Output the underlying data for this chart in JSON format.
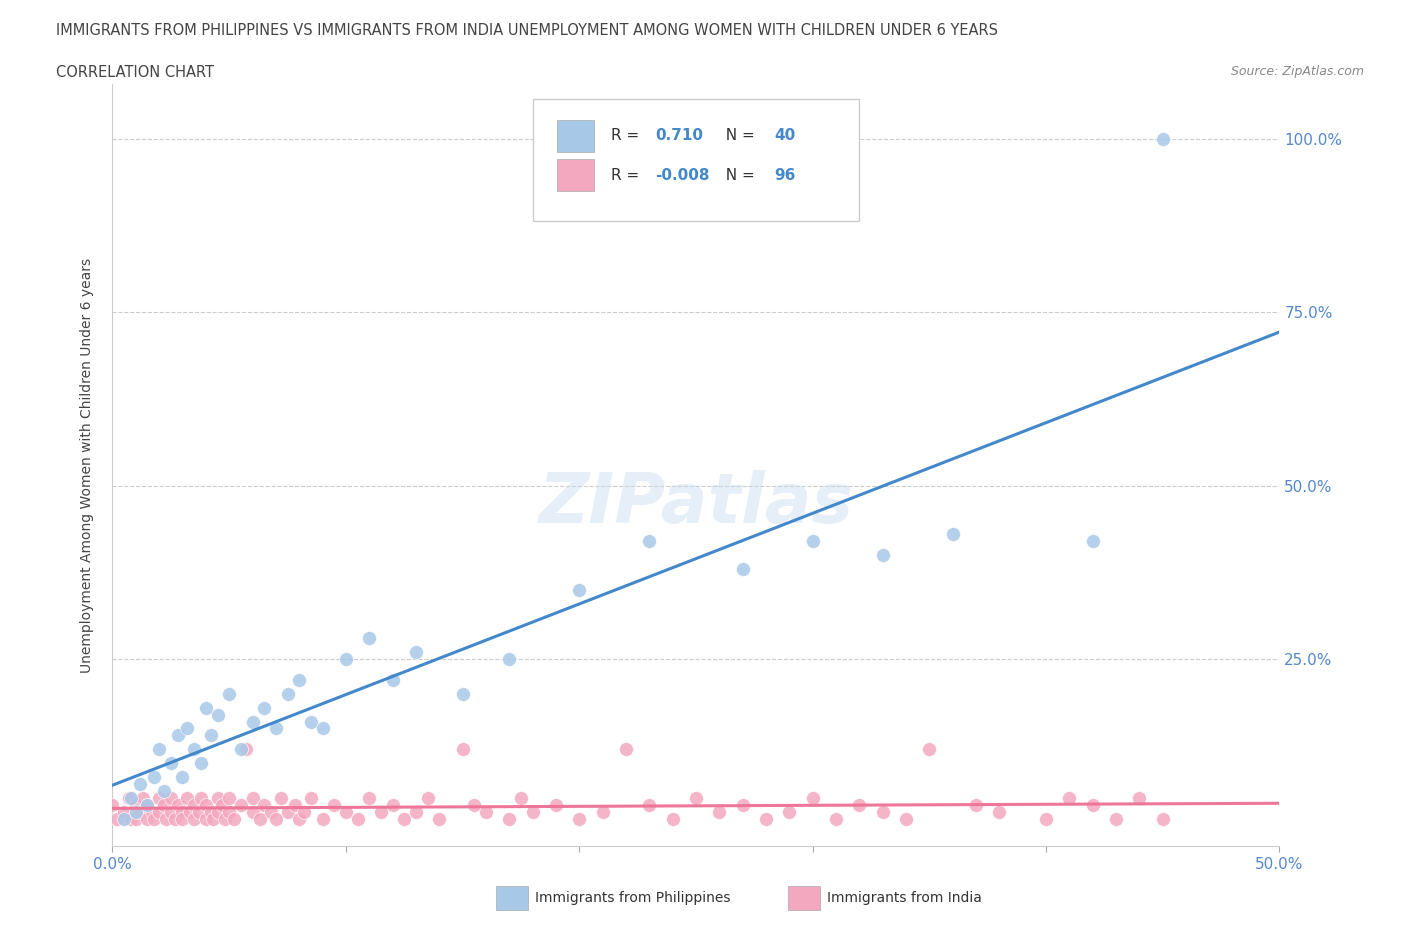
{
  "title_line1": "IMMIGRANTS FROM PHILIPPINES VS IMMIGRANTS FROM INDIA UNEMPLOYMENT AMONG WOMEN WITH CHILDREN UNDER 6 YEARS",
  "title_line2": "CORRELATION CHART",
  "source": "Source: ZipAtlas.com",
  "ylabel": "Unemployment Among Women with Children Under 6 years",
  "xlim": [
    0.0,
    0.5
  ],
  "ylim": [
    -0.02,
    1.08
  ],
  "r_philippines": 0.71,
  "n_philippines": 40,
  "r_india": -0.008,
  "n_india": 96,
  "color_philippines": "#A8C8E8",
  "color_india": "#F4A8C0",
  "line_color_philippines": "#4488CC",
  "line_color_india": "#EE7799",
  "grid_color": "#CCCCCC",
  "philippines_x": [
    0.005,
    0.008,
    0.01,
    0.012,
    0.015,
    0.018,
    0.02,
    0.022,
    0.025,
    0.028,
    0.03,
    0.032,
    0.035,
    0.038,
    0.04,
    0.042,
    0.045,
    0.05,
    0.055,
    0.06,
    0.065,
    0.07,
    0.075,
    0.08,
    0.085,
    0.09,
    0.1,
    0.11,
    0.12,
    0.13,
    0.15,
    0.17,
    0.2,
    0.23,
    0.27,
    0.3,
    0.33,
    0.36,
    0.42,
    0.45
  ],
  "philippines_y": [
    0.02,
    0.05,
    0.03,
    0.07,
    0.04,
    0.08,
    0.12,
    0.06,
    0.1,
    0.14,
    0.08,
    0.15,
    0.12,
    0.1,
    0.18,
    0.14,
    0.17,
    0.2,
    0.12,
    0.16,
    0.18,
    0.15,
    0.2,
    0.22,
    0.16,
    0.15,
    0.25,
    0.28,
    0.22,
    0.26,
    0.2,
    0.25,
    0.35,
    0.42,
    0.38,
    0.42,
    0.4,
    0.43,
    0.42,
    1.0
  ],
  "india_x": [
    0.0,
    0.002,
    0.005,
    0.007,
    0.008,
    0.01,
    0.01,
    0.012,
    0.013,
    0.015,
    0.015,
    0.017,
    0.018,
    0.02,
    0.02,
    0.022,
    0.023,
    0.025,
    0.025,
    0.027,
    0.028,
    0.03,
    0.03,
    0.032,
    0.033,
    0.035,
    0.035,
    0.037,
    0.038,
    0.04,
    0.04,
    0.042,
    0.043,
    0.045,
    0.045,
    0.047,
    0.048,
    0.05,
    0.05,
    0.052,
    0.055,
    0.057,
    0.06,
    0.06,
    0.063,
    0.065,
    0.068,
    0.07,
    0.072,
    0.075,
    0.078,
    0.08,
    0.082,
    0.085,
    0.09,
    0.095,
    0.1,
    0.105,
    0.11,
    0.115,
    0.12,
    0.125,
    0.13,
    0.135,
    0.14,
    0.15,
    0.155,
    0.16,
    0.17,
    0.175,
    0.18,
    0.19,
    0.2,
    0.21,
    0.22,
    0.23,
    0.24,
    0.25,
    0.26,
    0.27,
    0.28,
    0.29,
    0.3,
    0.31,
    0.32,
    0.33,
    0.34,
    0.35,
    0.37,
    0.38,
    0.4,
    0.41,
    0.42,
    0.43,
    0.44,
    0.45
  ],
  "india_y": [
    0.04,
    0.02,
    0.03,
    0.05,
    0.02,
    0.04,
    0.02,
    0.03,
    0.05,
    0.02,
    0.04,
    0.03,
    0.02,
    0.05,
    0.03,
    0.04,
    0.02,
    0.03,
    0.05,
    0.02,
    0.04,
    0.03,
    0.02,
    0.05,
    0.03,
    0.04,
    0.02,
    0.03,
    0.05,
    0.02,
    0.04,
    0.03,
    0.02,
    0.05,
    0.03,
    0.04,
    0.02,
    0.03,
    0.05,
    0.02,
    0.04,
    0.12,
    0.03,
    0.05,
    0.02,
    0.04,
    0.03,
    0.02,
    0.05,
    0.03,
    0.04,
    0.02,
    0.03,
    0.05,
    0.02,
    0.04,
    0.03,
    0.02,
    0.05,
    0.03,
    0.04,
    0.02,
    0.03,
    0.05,
    0.02,
    0.12,
    0.04,
    0.03,
    0.02,
    0.05,
    0.03,
    0.04,
    0.02,
    0.03,
    0.12,
    0.04,
    0.02,
    0.05,
    0.03,
    0.04,
    0.02,
    0.03,
    0.05,
    0.02,
    0.04,
    0.03,
    0.02,
    0.12,
    0.04,
    0.03,
    0.02,
    0.05,
    0.04,
    0.02,
    0.05,
    0.02
  ]
}
